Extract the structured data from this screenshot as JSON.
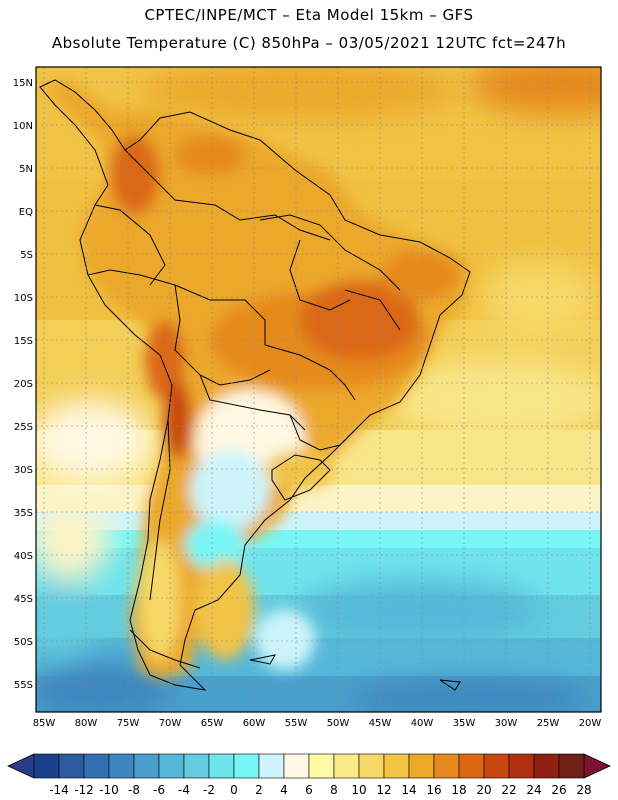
{
  "title": {
    "line1": "CPTEC/INPE/MCT –  Eta Model 15km – GFS",
    "line2": "Absolute Temperature (C) 850hPa – 03/05/2021 12UTC fct=247h"
  },
  "map": {
    "region": "South America",
    "lat_ticks": [
      "15N",
      "10N",
      "5N",
      "EQ",
      "5S",
      "10S",
      "15S",
      "20S",
      "25S",
      "30S",
      "35S",
      "40S",
      "45S",
      "50S",
      "55S"
    ],
    "lon_ticks": [
      "85W",
      "80W",
      "75W",
      "70W",
      "65W",
      "60W",
      "55W",
      "50W",
      "45W",
      "40W",
      "35W",
      "30W",
      "25W",
      "20W"
    ],
    "lat_range": [
      16.5,
      -58.5
    ],
    "lon_range": [
      -86.5,
      -20
    ]
  },
  "colorbar": {
    "labels": [
      "-14",
      "-12",
      "-10",
      "-8",
      "-6",
      "-4",
      "-2",
      "0",
      "2",
      "4",
      "6",
      "8",
      "10",
      "12",
      "14",
      "16",
      "18",
      "20",
      "22",
      "24",
      "26",
      "28"
    ],
    "colors": [
      "#1c3f8c",
      "#2a5aa0",
      "#3470b0",
      "#3e86bf",
      "#49a0cc",
      "#55b8d8",
      "#63ccdf",
      "#6fe4ec",
      "#78f6f6",
      "#cdf4fb",
      "#fff8e2",
      "#fefaa5",
      "#fbea88",
      "#f7d868",
      "#f1c446",
      "#eca82a",
      "#e68a1e",
      "#db6714",
      "#c8470e",
      "#b03010",
      "#8f2012",
      "#702016"
    ],
    "under_color": "#2a3d8a",
    "over_color": "#7e1030"
  }
}
